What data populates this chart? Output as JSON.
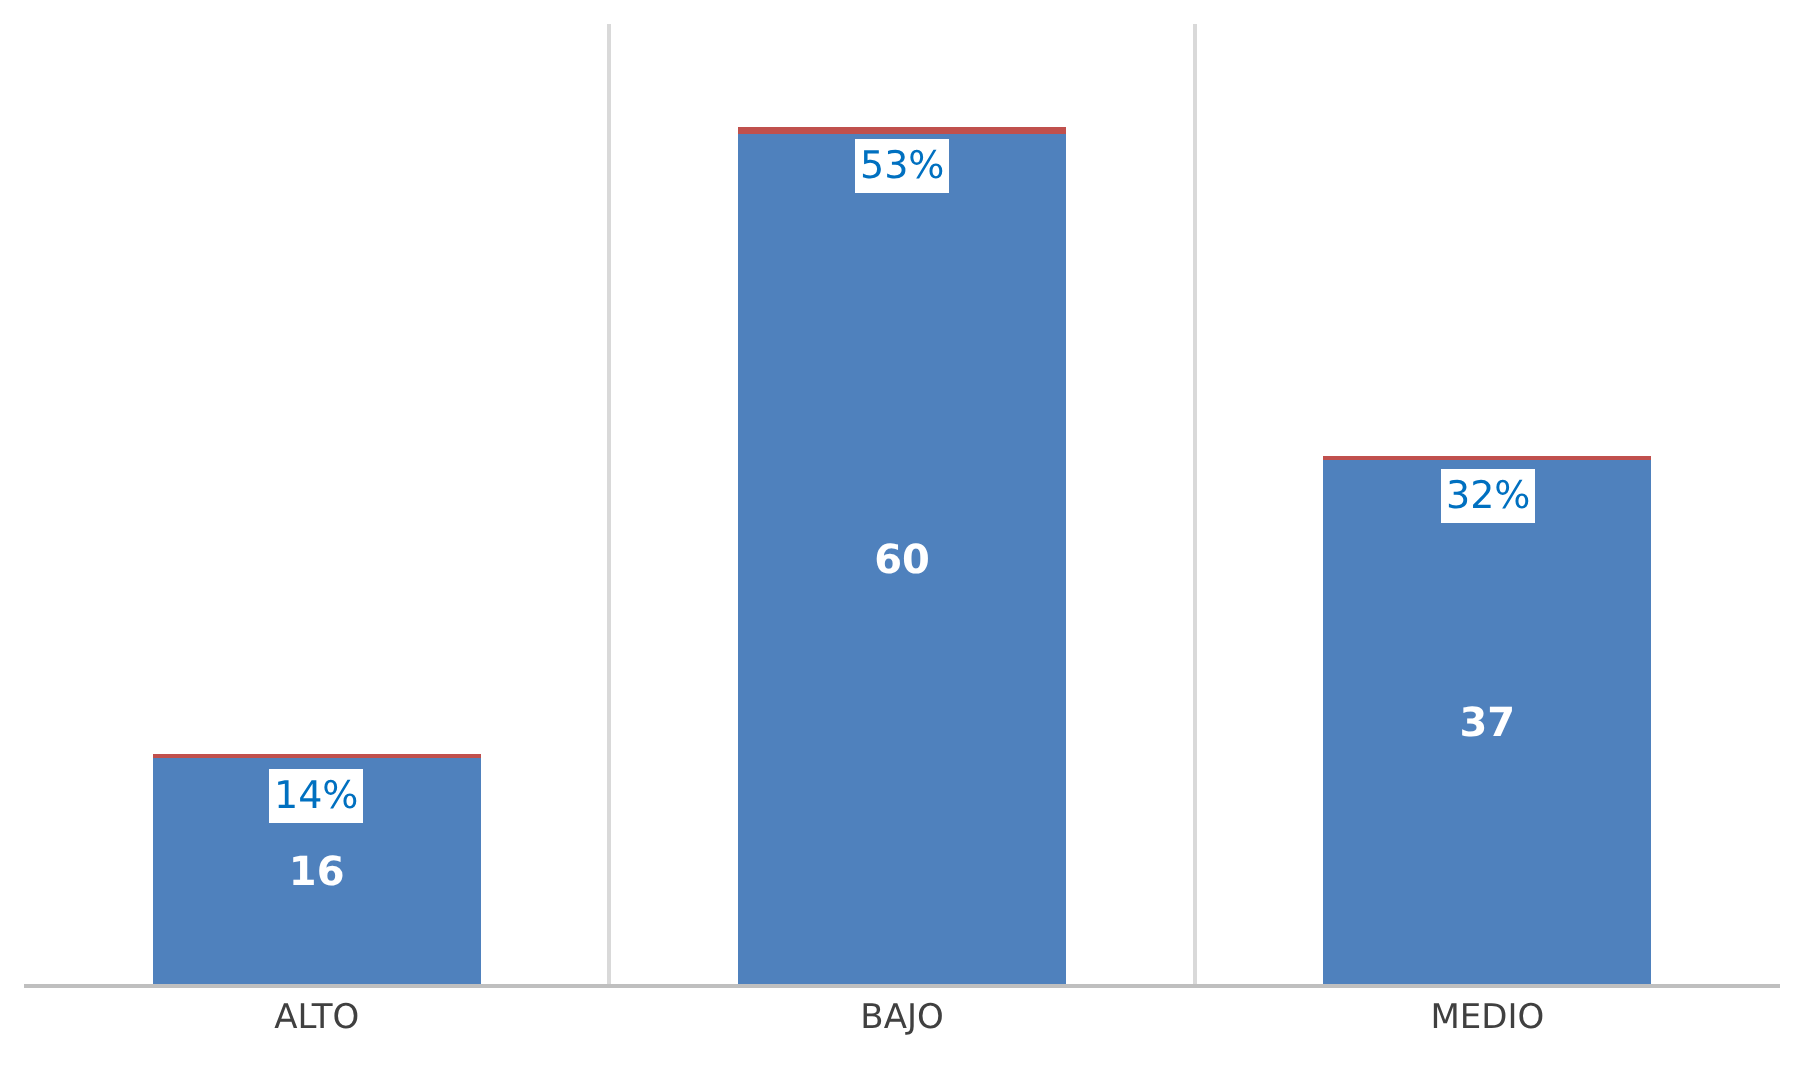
{
  "chart_data": {
    "type": "bar",
    "stacked": true,
    "categories": [
      "ALTO",
      "BAJO",
      "MEDIO"
    ],
    "series": [
      {
        "color": "#4f81bd",
        "values": [
          16,
          60,
          37
        ],
        "data_labels": true
      },
      {
        "color": "#c0504d",
        "values": [
          0.14,
          0.53,
          0.32
        ],
        "value_labels": [
          "14%",
          "53%",
          "32%"
        ]
      }
    ],
    "grid": "x",
    "tick_labels": "x"
  }
}
